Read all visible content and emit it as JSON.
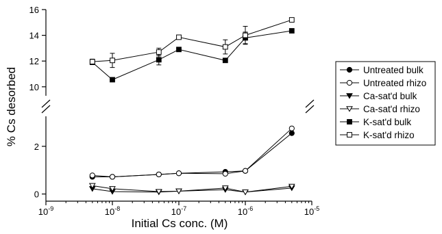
{
  "chart_data": {
    "type": "scatter",
    "title": "",
    "xlabel": "Initial Cs conc. (M)",
    "ylabel": "% Cs desorbed",
    "x_scale": "log",
    "xlim": [
      1e-09,
      1e-05
    ],
    "x_ticks": [
      {
        "value": 1e-09,
        "base": "10",
        "exp": "-9"
      },
      {
        "value": 1e-08,
        "base": "10",
        "exp": "-8"
      },
      {
        "value": 1e-07,
        "base": "10",
        "exp": "-7"
      },
      {
        "value": 1e-06,
        "base": "10",
        "exp": "-6"
      },
      {
        "value": 1e-05,
        "base": "10",
        "exp": "-5"
      }
    ],
    "y_axis_break": true,
    "y_segments": [
      {
        "range": [
          -0.3,
          3.2
        ],
        "ticks": [
          0,
          2
        ]
      },
      {
        "range": [
          9.3,
          16
        ],
        "ticks": [
          10,
          12,
          14,
          16
        ]
      }
    ],
    "grid": false,
    "legend_position": "right",
    "series": [
      {
        "name": "Untreated bulk",
        "marker": "filled-circle",
        "x": [
          5e-09,
          1e-08,
          5e-08,
          1e-07,
          5e-07,
          1e-06,
          5e-06
        ],
        "y": [
          0.72,
          0.72,
          0.82,
          0.87,
          0.93,
          0.97,
          2.55
        ],
        "err": [
          0,
          0,
          0,
          0,
          0,
          0,
          0
        ]
      },
      {
        "name": "Untreated rhizo",
        "marker": "open-circle",
        "x": [
          5e-09,
          1e-08,
          5e-08,
          1e-07,
          5e-07,
          1e-06,
          5e-06
        ],
        "y": [
          0.78,
          0.72,
          0.82,
          0.87,
          0.85,
          0.97,
          2.75
        ],
        "err": [
          0,
          0,
          0,
          0,
          0,
          0,
          0
        ]
      },
      {
        "name": "Ca-sat'd bulk",
        "marker": "filled-triangle-down",
        "x": [
          5e-09,
          1e-08,
          5e-08,
          1e-07,
          5e-07,
          1e-06,
          5e-06
        ],
        "y": [
          0.22,
          0.1,
          0.08,
          0.12,
          0.18,
          0.08,
          0.25
        ],
        "err": [
          0,
          0,
          0,
          0,
          0,
          0,
          0
        ]
      },
      {
        "name": "Ca-sat'd rhizo",
        "marker": "open-triangle-down",
        "x": [
          5e-09,
          1e-08,
          5e-08,
          1e-07,
          5e-07,
          1e-06,
          5e-06
        ],
        "y": [
          0.35,
          0.22,
          0.1,
          0.12,
          0.25,
          0.08,
          0.32
        ],
        "err": [
          0,
          0,
          0,
          0,
          0,
          0,
          0
        ]
      },
      {
        "name": "K-sat'd bulk",
        "marker": "filled-square",
        "x": [
          5e-09,
          1e-08,
          5e-08,
          1e-07,
          5e-07,
          1e-06,
          5e-06
        ],
        "y": [
          11.9,
          10.55,
          12.1,
          12.9,
          12.05,
          13.8,
          14.35
        ],
        "err": [
          0.15,
          0.15,
          0.4,
          0.12,
          0.12,
          0.45,
          0.12
        ]
      },
      {
        "name": "K-sat'd rhizo",
        "marker": "open-square",
        "x": [
          5e-09,
          1e-08,
          5e-08,
          1e-07,
          5e-07,
          1e-06,
          5e-06
        ],
        "y": [
          11.95,
          12.05,
          12.7,
          13.85,
          13.1,
          14.0,
          15.2
        ],
        "err": [
          0.2,
          0.55,
          0.3,
          0.1,
          0.55,
          0.7,
          0.15
        ]
      }
    ]
  }
}
